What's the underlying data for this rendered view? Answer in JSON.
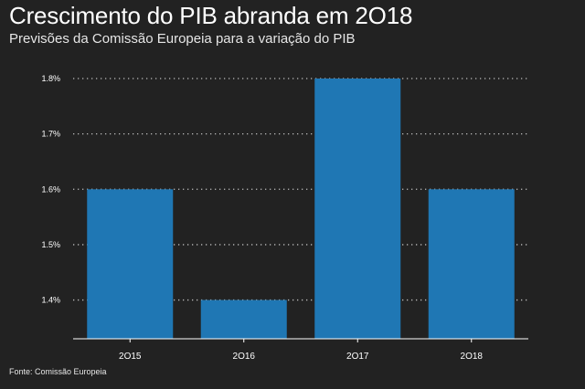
{
  "header": {
    "title": "Crescimento do PIB abranda em 2O18",
    "subtitle": "Previsões da Comissão Europeia para a variação do PIB"
  },
  "footer": {
    "source": "Fonte: Comissão Europeia"
  },
  "colors": {
    "background": "#222222",
    "bar": "#1f77b4",
    "grid": "#bbbbbb",
    "text": "#ffffff"
  },
  "chart_data": {
    "type": "bar",
    "categories": [
      "2O15",
      "2O16",
      "2O17",
      "2O18"
    ],
    "values": [
      1.6,
      1.4,
      1.8,
      1.6
    ],
    "yticks": [
      1.4,
      1.5,
      1.6,
      1.7,
      1.8
    ],
    "ytick_labels": [
      "1.4%",
      "1.5%",
      "1.6%",
      "1.7%",
      "1.8%"
    ],
    "ylim": [
      1.33,
      1.8
    ],
    "grid": "horizontal dotted",
    "legend": "none",
    "title": "Crescimento do PIB abranda em 2O18",
    "subtitle": "Previsões da Comissão Europeia para a variação do PIB",
    "xlabel": "",
    "ylabel": ""
  }
}
